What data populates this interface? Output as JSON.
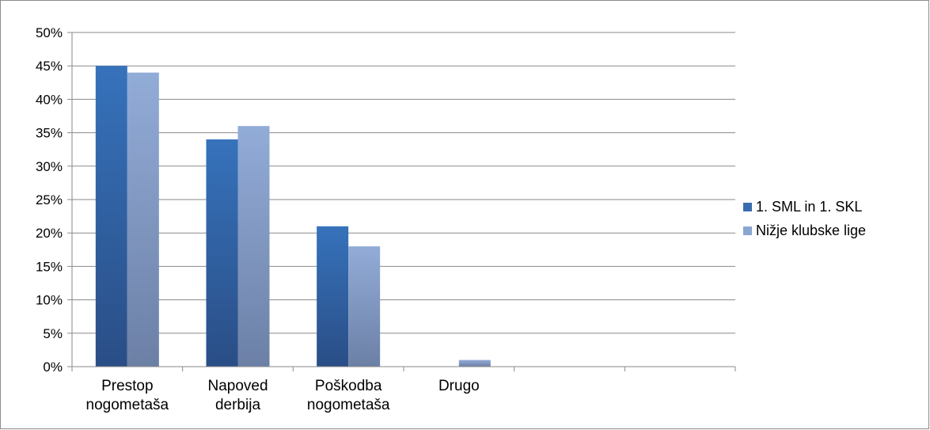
{
  "chart_data": {
    "type": "bar",
    "categories": [
      [
        "Prestop",
        "nogometaša"
      ],
      [
        "Napoved",
        "derbija"
      ],
      [
        "Poškodba",
        "nogometaša"
      ],
      [
        "Drugo"
      ],
      [],
      []
    ],
    "series": [
      {
        "name": "1. SML in 1. SKL",
        "values": [
          45,
          34,
          21,
          0,
          null,
          null
        ],
        "color": "#3a6db0"
      },
      {
        "name": "Nižje klubske lige",
        "values": [
          44,
          36,
          18,
          1,
          null,
          null
        ],
        "color": "#8aa6d3"
      }
    ],
    "yticks": [
      "0%",
      "5%",
      "10%",
      "15%",
      "20%",
      "25%",
      "30%",
      "35%",
      "40%",
      "45%",
      "50%"
    ],
    "ylim": [
      0,
      50
    ],
    "grid": true,
    "legend_position": "right"
  }
}
